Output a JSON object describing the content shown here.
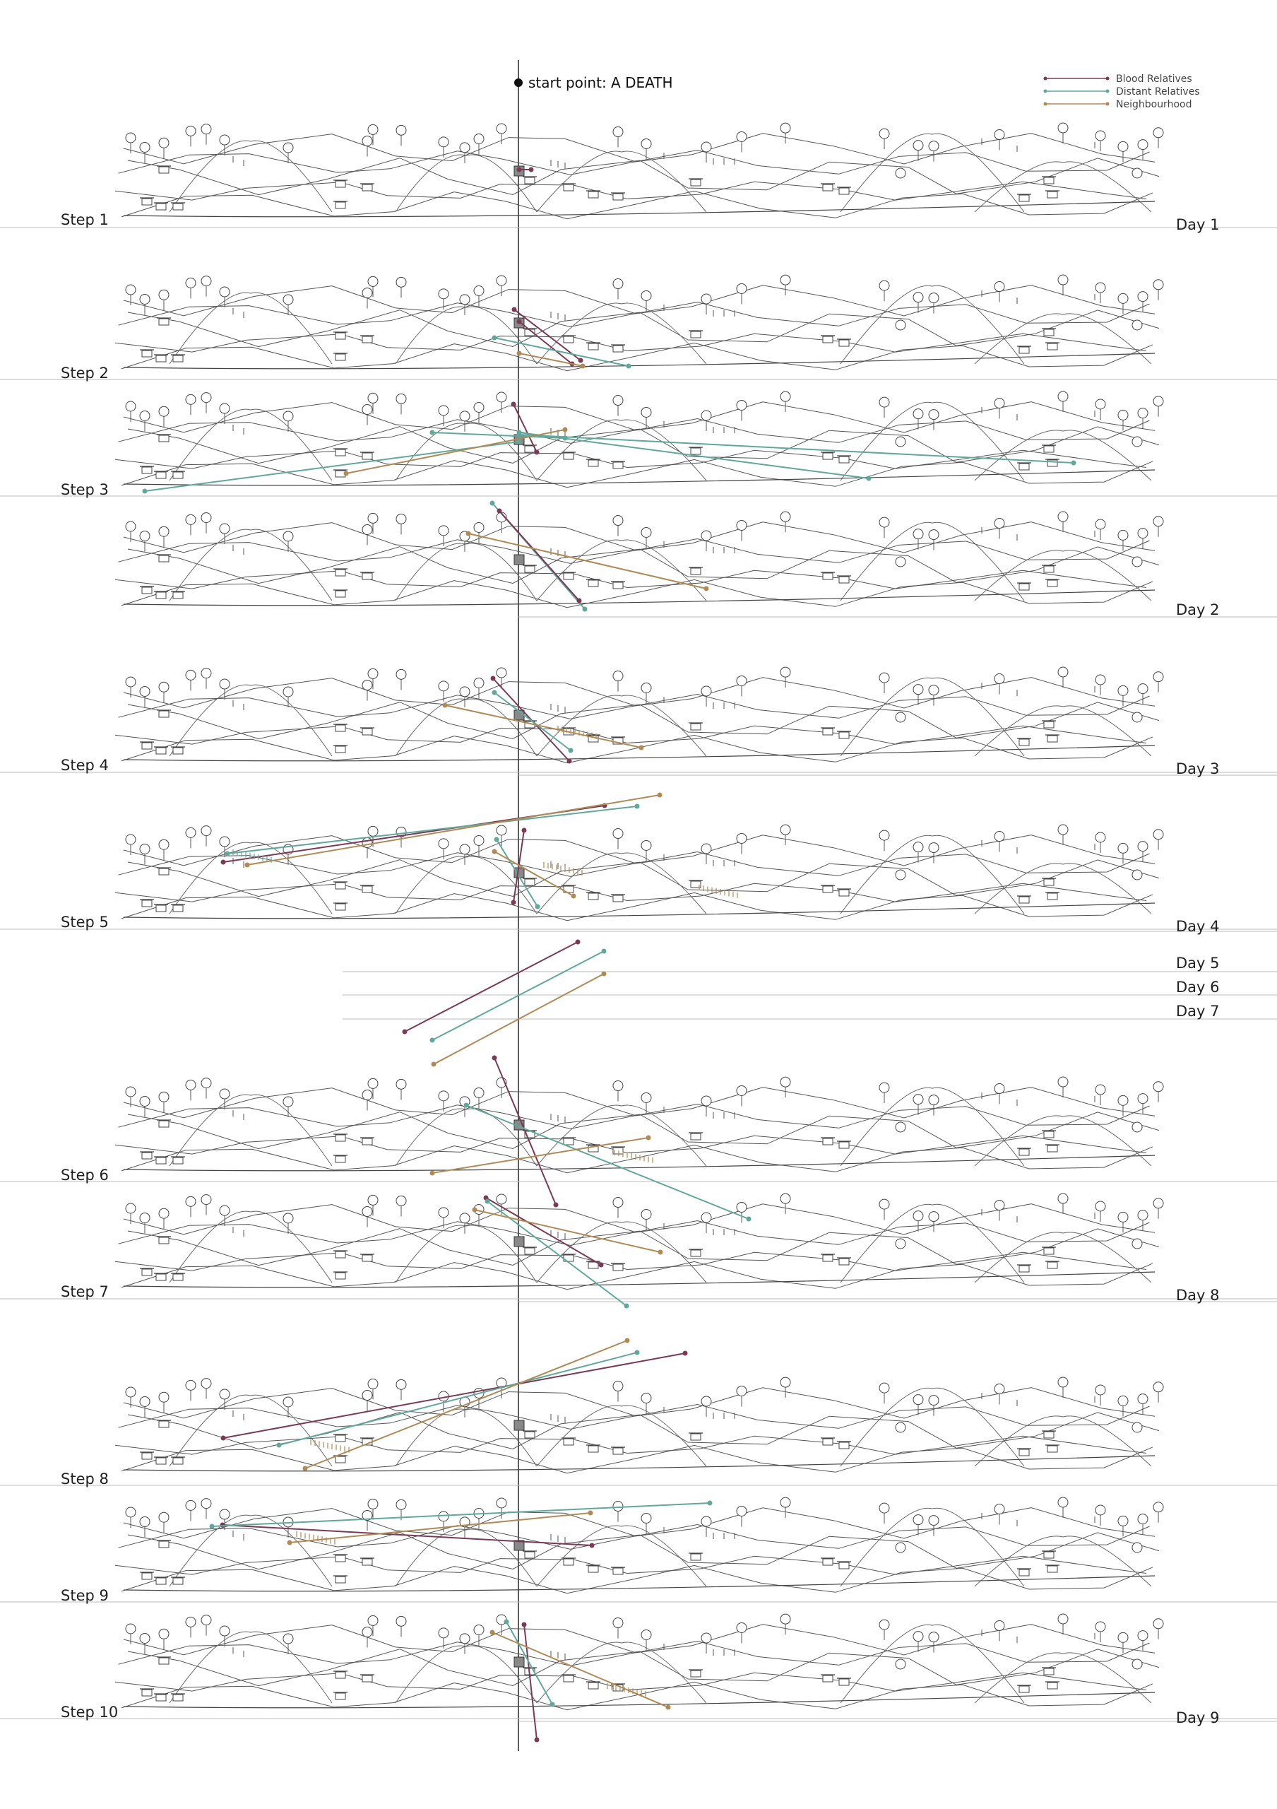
{
  "start_label": "start point: A DEATH",
  "legend": [
    {
      "label": "Blood Relatives",
      "color": "#7a3a55"
    },
    {
      "label": "Distant Relatives",
      "color": "#5fa89a"
    },
    {
      "label": "Neighbourhood",
      "color": "#b08a55"
    }
  ],
  "steps": [
    {
      "label": "Step 1"
    },
    {
      "label": "Step 2"
    },
    {
      "label": "Step 3"
    },
    {
      "label": "Step 4"
    },
    {
      "label": "Step 5"
    },
    {
      "label": "Step 6"
    },
    {
      "label": "Step 7"
    },
    {
      "label": "Step 8"
    },
    {
      "label": "Step 9"
    },
    {
      "label": "Step 10"
    }
  ],
  "days": [
    {
      "label": "Day 1"
    },
    {
      "label": "Day 2"
    },
    {
      "label": "Day 3"
    },
    {
      "label": "Day 4"
    },
    {
      "label": "Day 5"
    },
    {
      "label": "Day 6"
    },
    {
      "label": "Day 7"
    },
    {
      "label": "Day 8"
    },
    {
      "label": "Day 9"
    }
  ]
}
